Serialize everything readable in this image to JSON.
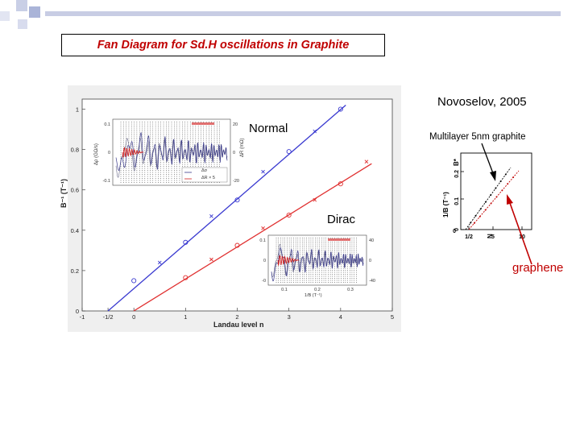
{
  "slide": {
    "title": "Fan Diagram  for Sd.H oscillations in Graphite",
    "citation": "Novoselov, 2005",
    "label_normal": "Normal",
    "label_dirac": "Dirac",
    "label_multilayer": "Multilayer 5nm graphite",
    "label_graphene": "graphene",
    "colors": {
      "title": "#c00000",
      "normal_line": "#3a3ad0",
      "dirac_line": "#e03030",
      "arrow": "#c00000"
    }
  },
  "chart_data": [
    {
      "type": "scatter",
      "xlabel": "Landau level  n",
      "ylabel": "B⁻¹ (T⁻¹)",
      "xlim": [
        -1,
        5
      ],
      "ylim": [
        0,
        1.05
      ],
      "x_ticks": [
        "-1",
        "-1/2",
        "0",
        "1",
        "2",
        "3",
        "4",
        "5"
      ],
      "x_tick_values": [
        -1,
        -0.5,
        0,
        1,
        2,
        3,
        4,
        5
      ],
      "y_ticks": [
        "0",
        "0.2",
        "0.4",
        "0.6",
        "0.8",
        "1"
      ],
      "y_tick_values": [
        0,
        0.2,
        0.4,
        0.6,
        0.8,
        1
      ],
      "series": [
        {
          "line": [
            [
              -0.5,
              0
            ],
            [
              4.1,
              1.02
            ]
          ],
          "circles": [
            [
              0,
              0.15
            ],
            [
              1,
              0.34
            ],
            [
              2,
              0.55
            ],
            [
              3,
              0.79
            ],
            [
              4,
              1.0
            ]
          ],
          "crosses": [
            [
              0.5,
              0.24
            ],
            [
              1.5,
              0.47
            ],
            [
              2.5,
              0.69
            ],
            [
              3.5,
              0.89
            ]
          ]
        },
        {
          "line": [
            [
              0,
              0
            ],
            [
              4.6,
              0.73
            ]
          ],
          "circles": [
            [
              1,
              0.165
            ],
            [
              2,
              0.325
            ],
            [
              3,
              0.475
            ],
            [
              4,
              0.63
            ]
          ],
          "crosses": [
            [
              1.5,
              0.255
            ],
            [
              2.5,
              0.41
            ],
            [
              3.5,
              0.55
            ],
            [
              4.5,
              0.74
            ]
          ]
        }
      ]
    },
    {
      "type": "line",
      "xlabel": "N",
      "ylabel": "1/B (T⁻¹)",
      "x_ticks": [
        "0",
        "1/2",
        "5",
        "10"
      ],
      "y_ticks": [
        "0",
        "0.1",
        "0.2"
      ],
      "y_label_top": "B*"
    }
  ],
  "inset_top": {
    "y_left_ticks": [
      "0.1",
      "0",
      "-0.1"
    ],
    "y_left_label": "Δρ (GΩ/s)",
    "y_right_ticks": [
      "20",
      "0",
      "-20"
    ],
    "y_right_label": "ΔR (mΩ)",
    "legend": [
      "Δσ",
      "ΔR × 5"
    ]
  },
  "inset_bottom": {
    "y_left_ticks": [
      "0.1",
      "0",
      "-0"
    ],
    "y_right_ticks": [
      "40",
      "0",
      "-40"
    ],
    "x_ticks": [
      "0.1",
      "0.2",
      "0.3"
    ],
    "x_label": "1/B (T⁻¹)"
  }
}
